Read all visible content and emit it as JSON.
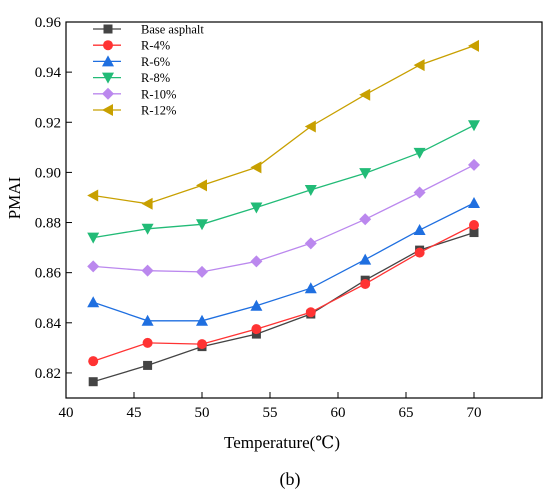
{
  "chart_data": {
    "type": "line",
    "xlabel": "Temperature(℃)",
    "ylabel": "PMAI",
    "panel_label": "(b)",
    "xlim": [
      40,
      75
    ],
    "ylim": [
      0.81,
      0.96
    ],
    "xticks": [
      40,
      45,
      50,
      55,
      60,
      65,
      70
    ],
    "yticks": [
      0.82,
      0.84,
      0.86,
      0.88,
      0.9,
      0.92,
      0.94,
      0.96
    ],
    "xtick_labels": [
      "40",
      "45",
      "50",
      "55",
      "60",
      "65",
      "70"
    ],
    "ytick_labels": [
      "0.82",
      "0.84",
      "0.86",
      "0.88",
      "0.90",
      "0.92",
      "0.94",
      "0.96"
    ],
    "grid": false,
    "legend_position": "top-left",
    "x": [
      42,
      46,
      50,
      54,
      58,
      62,
      66,
      70
    ],
    "series": [
      {
        "name": "Base asphalt",
        "marker": "square",
        "color": "#444444",
        "values": [
          0.8165,
          0.823,
          0.8305,
          0.8355,
          0.8435,
          0.857,
          0.869,
          0.876
        ]
      },
      {
        "name": "R-4%",
        "marker": "circle",
        "color": "#ff3333",
        "values": [
          0.8247,
          0.832,
          0.8315,
          0.8375,
          0.8442,
          0.8555,
          0.868,
          0.879
        ]
      },
      {
        "name": "R-6%",
        "marker": "triangle-up",
        "color": "#1f6fe0",
        "values": [
          0.8482,
          0.8408,
          0.8408,
          0.8468,
          0.8538,
          0.8652,
          0.877,
          0.8878
        ]
      },
      {
        "name": "R-8%",
        "marker": "triangle-down",
        "color": "#22bb77",
        "values": [
          0.874,
          0.8775,
          0.8793,
          0.886,
          0.893,
          0.8997,
          0.9078,
          0.9188
        ]
      },
      {
        "name": "R-10%",
        "marker": "diamond",
        "color": "#bb88ee",
        "values": [
          0.8625,
          0.8608,
          0.8603,
          0.8645,
          0.8717,
          0.8813,
          0.892,
          0.903
        ]
      },
      {
        "name": "R-12%",
        "marker": "triangle-left",
        "color": "#c8a000",
        "values": [
          0.8908,
          0.8875,
          0.8948,
          0.902,
          0.9183,
          0.931,
          0.9428,
          0.9505
        ]
      }
    ]
  }
}
